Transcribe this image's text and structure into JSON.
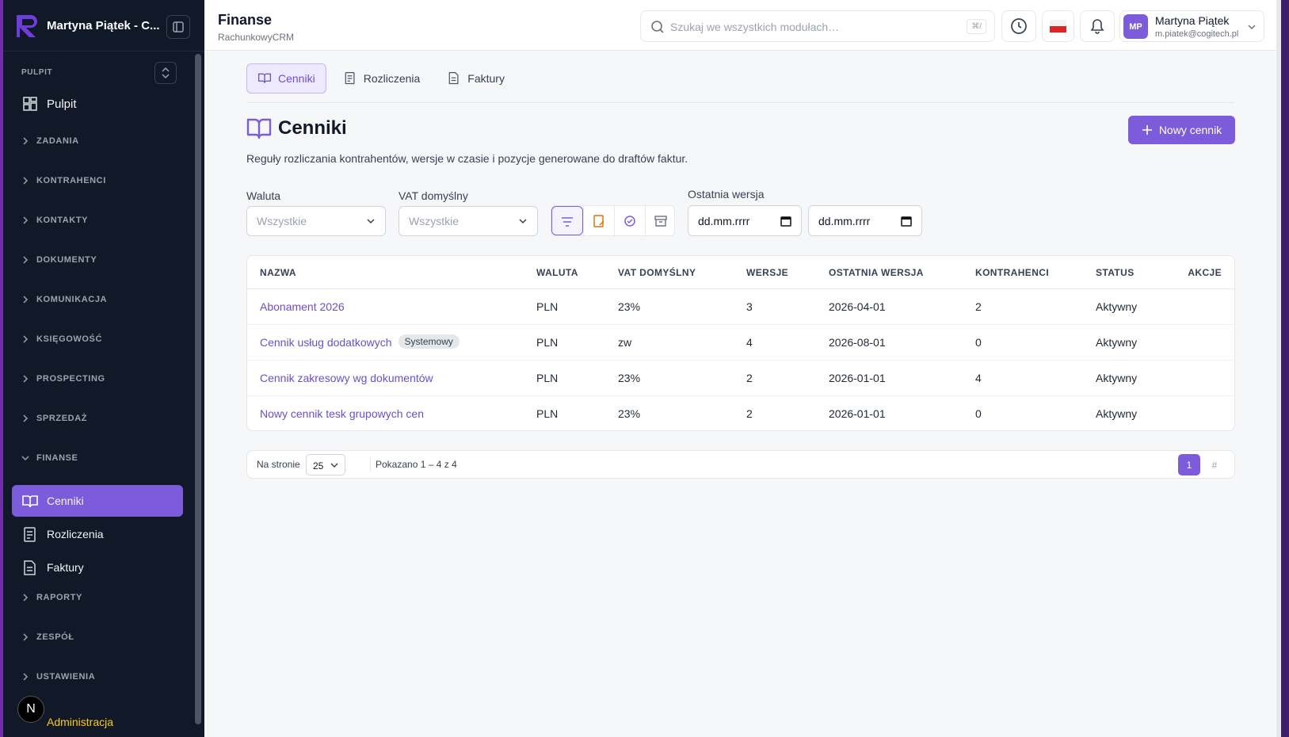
{
  "sidebar": {
    "brand": "Martyna Piątek - C...",
    "pulpit_label": "PULPIT",
    "pulpit_item": "Pulpit",
    "groups": [
      {
        "label": "ZADANIA"
      },
      {
        "label": "KONTRAHENCI"
      },
      {
        "label": "KONTAKTY"
      },
      {
        "label": "DOKUMENTY"
      },
      {
        "label": "KOMUNIKACJA"
      },
      {
        "label": "KSIĘGOWOŚĆ"
      },
      {
        "label": "PROSPECTING"
      },
      {
        "label": "SPRZEDAŻ"
      },
      {
        "label": "FINANSE",
        "items": [
          "Cenniki",
          "Rozliczenia",
          "Faktury"
        ]
      },
      {
        "label": "RAPORTY"
      },
      {
        "label": "ZESPÓŁ"
      },
      {
        "label": "USTAWIENIA"
      }
    ],
    "footer": "Administracja",
    "badge": "N"
  },
  "header": {
    "title": "Finanse",
    "subtitle": "RachunkowyCRM",
    "search_placeholder": "Szukaj we wszystkich modułach…",
    "shortcut": "⌘/",
    "avatar": "MP",
    "user_name": "Martyna Piątek",
    "user_email": "m.piatek@cogitech.pl"
  },
  "tabs": [
    "Cenniki",
    "Rozliczenia",
    "Faktury"
  ],
  "page": {
    "title": "Cenniki",
    "description": "Reguły rozliczania kontrahentów, wersje w czasie i pozycje generowane do draftów faktur.",
    "button": "Nowy cennik"
  },
  "filters": {
    "currency_label": "Waluta",
    "currency_value": "Wszystkie",
    "vat_label": "VAT domyślny",
    "vat_value": "Wszystkie",
    "version_label": "Ostatnia wersja",
    "date_from": "dd.mm.rrrr",
    "date_to": "dd.mm.rrrr"
  },
  "table": {
    "columns": [
      "NAZWA",
      "WALUTA",
      "VAT DOMYŚLNY",
      "WERSJE",
      "OSTATNIA WERSJA",
      "KONTRAHENCI",
      "STATUS",
      "AKCJE"
    ],
    "rows": [
      {
        "name": "Abonament 2026",
        "cells": [
          "PLN",
          "23%",
          "3",
          "2026-04-01",
          "2",
          "Aktywny"
        ]
      },
      {
        "name": "Cennik usług dodatkowych",
        "tag": "Systemowy",
        "cells": [
          "PLN",
          "zw",
          "4",
          "2026-08-01",
          "0",
          "Aktywny"
        ]
      },
      {
        "name": "Cennik zakresowy wg dokumentów",
        "cells": [
          "PLN",
          "23%",
          "2",
          "2026-01-01",
          "4",
          "Aktywny"
        ]
      },
      {
        "name": "Nowy cennik tesk grupowych cen",
        "cells": [
          "PLN",
          "23%",
          "2",
          "2026-01-01",
          "0",
          "Aktywny"
        ]
      }
    ]
  },
  "pagination": {
    "per_page_label": "Na stronie",
    "per_page": "25",
    "summary": "Pokazano 1 – 4 z 4",
    "page": "1",
    "hash": "#"
  }
}
